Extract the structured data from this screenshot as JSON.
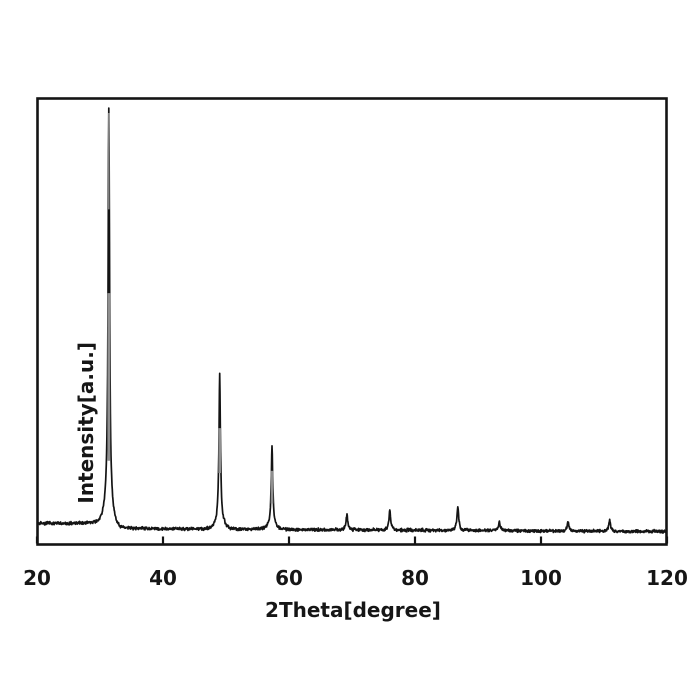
{
  "page": {
    "background": "#ffffff",
    "foreground": "#161616"
  },
  "chart_data": {
    "type": "line",
    "title": "",
    "xlabel": "2Theta[degree]",
    "ylabel": "Intensity[a.u.]",
    "xlim": [
      20,
      120
    ],
    "x_tick_interval": 20,
    "x_ticks": [
      20,
      40,
      60,
      80,
      100,
      120
    ],
    "y_tick_labels_visible": false,
    "grid": false,
    "legend": "none",
    "line_color": "#141414",
    "peak_core_gray": "#8f8f8f",
    "series": [
      {
        "name": "XRD intensity trace",
        "peaks": [
          {
            "two_theta": 31.4,
            "rel_intensity": 1.0
          },
          {
            "two_theta": 49.0,
            "rel_intensity": 0.37
          },
          {
            "two_theta": 57.3,
            "rel_intensity": 0.2
          },
          {
            "two_theta": 69.2,
            "rel_intensity": 0.036
          },
          {
            "two_theta": 76.0,
            "rel_intensity": 0.046
          },
          {
            "two_theta": 86.8,
            "rel_intensity": 0.058
          },
          {
            "two_theta": 93.4,
            "rel_intensity": 0.021
          },
          {
            "two_theta": 104.3,
            "rel_intensity": 0.021
          },
          {
            "two_theta": 110.9,
            "rel_intensity": 0.026
          }
        ],
        "baseline": {
          "left_level": 0.0205,
          "right_level": 0.008,
          "noise_amplitude": 0.0045
        }
      }
    ]
  }
}
